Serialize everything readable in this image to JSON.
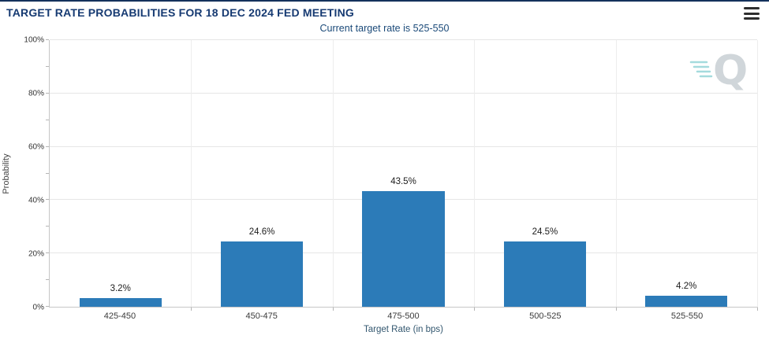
{
  "header": {
    "title": "TARGET RATE PROBABILITIES FOR 18 DEC 2024 FED MEETING",
    "subtitle": "Current target rate is 525-550"
  },
  "menu": {
    "icon": "hamburger-icon"
  },
  "watermark": {
    "letter": "Q"
  },
  "chart_data": {
    "type": "bar",
    "title": "TARGET RATE PROBABILITIES FOR 18 DEC 2024 FED MEETING",
    "subtitle": "Current target rate is 525-550",
    "categories": [
      "425-450",
      "450-475",
      "475-500",
      "500-525",
      "525-550"
    ],
    "values": [
      3.2,
      24.6,
      43.5,
      24.5,
      4.2
    ],
    "value_labels": [
      "3.2%",
      "24.6%",
      "43.5%",
      "24.5%",
      "4.2%"
    ],
    "xlabel": "Target Rate (in bps)",
    "ylabel": "Probability",
    "ylim": [
      0,
      100
    ],
    "yticks": [
      0,
      20,
      40,
      60,
      80,
      100
    ],
    "ytick_labels": [
      "0%",
      "20%",
      "40%",
      "60%",
      "80%",
      "100%"
    ],
    "grid": true,
    "legend": false,
    "bar_color": "#2c7bb8"
  }
}
